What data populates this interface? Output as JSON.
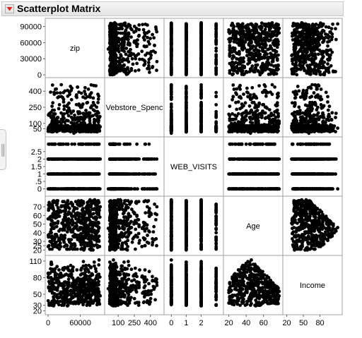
{
  "header": {
    "title": "Scatterplot Matrix",
    "menu_icon": "red-triangle-menu-icon"
  },
  "side_handle_icon": "drag-handle-icon",
  "colors": {
    "marker": "#000000",
    "menu_triangle": "#e0201b",
    "frame": "#a0a0a0"
  },
  "chart_data": {
    "type": "scatter",
    "subtype": "scatterplot-matrix",
    "variables": [
      {
        "name": "zip",
        "range": [
          0,
          100000
        ],
        "ticks": [
          0,
          30000,
          60000,
          90000
        ],
        "axis_labels": [
          "0",
          "30000",
          "60000",
          "90000"
        ],
        "x_ticks": [
          0,
          60000
        ],
        "x_axis_labels": [
          "0",
          "60000"
        ]
      },
      {
        "name": "Webstore_Spend",
        "display_name": "Vebstore_Spenc",
        "range": [
          0,
          500
        ],
        "ticks": [
          100,
          250,
          400
        ],
        "axis_labels": [
          "100",
          "250",
          "400"
        ],
        "y_ticks": [
          50,
          100,
          250,
          400
        ],
        "y_axis_labels": [
          "50",
          "100",
          "250",
          "400"
        ]
      },
      {
        "name": "WEB_VISITS",
        "range": [
          -0.3,
          3.3
        ],
        "ticks": [
          0,
          1,
          2
        ],
        "axis_labels": [
          "0",
          "1",
          "2"
        ],
        "y_ticks": [
          0,
          0.5,
          1,
          1.5,
          2,
          2.5
        ],
        "y_axis_labels": [
          "0",
          ".5",
          "1",
          "1.5",
          "2",
          "2.5"
        ]
      },
      {
        "name": "Age",
        "range": [
          17,
          79
        ],
        "ticks": [
          20,
          40,
          60
        ],
        "axis_labels": [
          "20",
          "40",
          "60"
        ],
        "y_ticks": [
          20,
          25,
          30,
          40,
          50,
          60,
          70
        ],
        "y_axis_labels": [
          "20",
          "25",
          "30",
          "40",
          "50",
          "60",
          "70"
        ]
      },
      {
        "name": "Income",
        "range": [
          18,
          115
        ],
        "ticks": [
          20,
          50,
          80
        ],
        "axis_labels": [
          "20",
          "50",
          "80"
        ],
        "y_ticks": [
          20,
          30,
          50,
          80,
          110
        ],
        "y_axis_labels": [
          "20",
          "30",
          "50",
          "80",
          "110"
        ]
      }
    ],
    "x_axis_labels": [
      "0",
      "60000",
      "100",
      "400",
      "0",
      "1",
      "2",
      "20",
      "40",
      "60",
      "20",
      "50",
      "80"
    ],
    "grid": false,
    "legend": "none",
    "n_points": 500
  }
}
